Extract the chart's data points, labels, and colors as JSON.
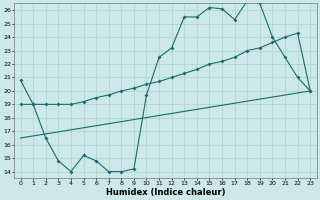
{
  "xlabel": "Humidex (Indice chaleur)",
  "bg_color": "#cce8e8",
  "grid_color": "#b8d8d8",
  "line_color": "#1a6b6b",
  "xlim": [
    -0.5,
    23.5
  ],
  "ylim": [
    13.5,
    26.5
  ],
  "xticks": [
    0,
    1,
    2,
    3,
    4,
    5,
    6,
    7,
    8,
    9,
    10,
    11,
    12,
    13,
    14,
    15,
    16,
    17,
    18,
    19,
    20,
    21,
    22,
    23
  ],
  "yticks": [
    14,
    15,
    16,
    17,
    18,
    19,
    20,
    21,
    22,
    23,
    24,
    25,
    26
  ],
  "series1_x": [
    0,
    1,
    2,
    3,
    4,
    5,
    6,
    7,
    8,
    9,
    10,
    11,
    12,
    13,
    14,
    15,
    16,
    17,
    18,
    19,
    20,
    21,
    22,
    23
  ],
  "series1_y": [
    20.8,
    19.0,
    16.5,
    14.8,
    14.0,
    15.2,
    14.8,
    14.0,
    14.0,
    14.2,
    19.7,
    22.5,
    23.2,
    25.5,
    25.5,
    26.2,
    26.1,
    25.3,
    26.7,
    26.5,
    24.0,
    22.5,
    21.0,
    20.0
  ],
  "series2_x": [
    0,
    23
  ],
  "series2_y": [
    16.5,
    20.0
  ],
  "series3_x": [
    0,
    1,
    2,
    3,
    4,
    5,
    6,
    7,
    8,
    9,
    10,
    11,
    12,
    13,
    14,
    15,
    16,
    17,
    18,
    19,
    20,
    21,
    22,
    23
  ],
  "series3_y": [
    19.0,
    19.0,
    19.0,
    19.0,
    19.0,
    19.2,
    19.5,
    19.7,
    20.0,
    20.2,
    20.5,
    20.7,
    21.0,
    21.3,
    21.6,
    22.0,
    22.2,
    22.5,
    23.0,
    23.2,
    23.6,
    24.0,
    24.3,
    20.0
  ]
}
